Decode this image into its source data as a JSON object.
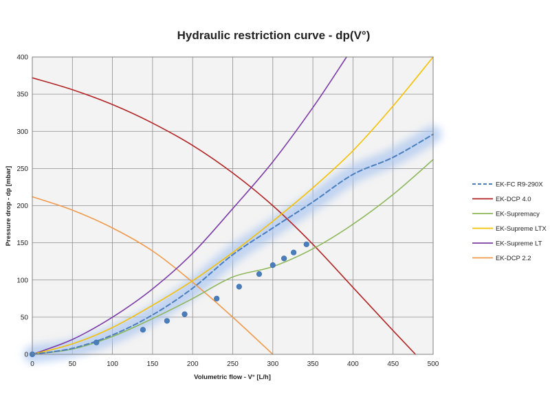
{
  "chart_data": {
    "type": "line",
    "title": "Hydraulic restriction curve - dp(V°)",
    "xlabel": "Volumetric flow - V° [L/h]",
    "ylabel": "Pressure drop - dp [mbar]",
    "xlim": [
      0,
      500
    ],
    "ylim": [
      0,
      400
    ],
    "xticks": [
      0,
      50,
      100,
      150,
      200,
      250,
      300,
      350,
      400,
      450,
      500
    ],
    "yticks": [
      0,
      50,
      100,
      150,
      200,
      250,
      300,
      350,
      400
    ],
    "grid": true,
    "legend_position": "right",
    "series": [
      {
        "name": "EK-FC R9-290X",
        "color": "#4a7ebb",
        "style": "dashed",
        "x": [
          0,
          50,
          100,
          150,
          200,
          250,
          300,
          350,
          400,
          450,
          500
        ],
        "y": [
          0,
          8,
          26,
          53,
          89,
          134,
          170,
          205,
          242,
          265,
          296
        ],
        "markers": [
          {
            "x": 0,
            "y": 0
          },
          {
            "x": 80,
            "y": 16
          },
          {
            "x": 138,
            "y": 33
          },
          {
            "x": 168,
            "y": 45
          },
          {
            "x": 190,
            "y": 54
          },
          {
            "x": 230,
            "y": 75
          },
          {
            "x": 258,
            "y": 91
          },
          {
            "x": 283,
            "y": 108
          },
          {
            "x": 300,
            "y": 120
          },
          {
            "x": 314,
            "y": 129
          },
          {
            "x": 326,
            "y": 137
          },
          {
            "x": 342,
            "y": 148
          }
        ]
      },
      {
        "name": "EK-DCP 4.0",
        "color": "#b22222",
        "style": "solid",
        "x": [
          0,
          50,
          100,
          150,
          200,
          250,
          300,
          350,
          400,
          450,
          478
        ],
        "y": [
          372,
          356,
          336,
          311,
          281,
          244,
          200,
          148,
          90,
          32,
          0
        ]
      },
      {
        "name": "EK-Supremacy",
        "color": "#8db65a",
        "style": "solid",
        "x": [
          0,
          50,
          100,
          150,
          200,
          250,
          300,
          350,
          400,
          450,
          500
        ],
        "y": [
          0,
          7,
          24,
          48,
          75,
          104,
          118,
          142,
          175,
          215,
          262
        ]
      },
      {
        "name": "EK-Supreme LTX",
        "color": "#f5c000",
        "style": "solid",
        "x": [
          0,
          50,
          100,
          150,
          200,
          250,
          300,
          350,
          400,
          450,
          500
        ],
        "y": [
          0,
          14,
          36,
          66,
          99,
          137,
          179,
          224,
          274,
          334,
          400
        ]
      },
      {
        "name": "EK-Supreme LT",
        "color": "#7b3aa6",
        "style": "solid",
        "x": [
          0,
          50,
          100,
          150,
          200,
          250,
          300,
          350,
          392
        ],
        "y": [
          0,
          20,
          50,
          88,
          136,
          196,
          259,
          332,
          400
        ]
      },
      {
        "name": "EK-DCP 2.2",
        "color": "#f0994a",
        "style": "solid",
        "x": [
          0,
          50,
          100,
          150,
          200,
          250,
          300
        ],
        "y": [
          212,
          194,
          170,
          139,
          97,
          50,
          0
        ]
      }
    ]
  }
}
